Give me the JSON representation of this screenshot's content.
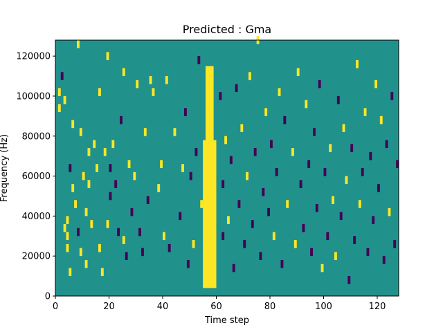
{
  "chart_data": {
    "type": "heatmap",
    "title": "Predicted : Gma",
    "xlabel": "Time step",
    "ylabel": "Frequency (Hz)",
    "xlim": [
      0,
      128
    ],
    "ylim": [
      0,
      128000
    ],
    "x_ticks": [
      0,
      20,
      40,
      60,
      80,
      100,
      120
    ],
    "y_ticks": [
      0,
      20000,
      40000,
      60000,
      80000,
      100000,
      120000
    ],
    "grid": false,
    "legend": "none",
    "colors": {
      "low": "#440154",
      "mid": "#21918c",
      "high": "#fde725"
    },
    "values_description": "Each time step has a column of cells; value 0 = low, 1 = mid (background), 2 = high",
    "background_value": 1,
    "dense_high_columns": [
      {
        "x_start": 55,
        "x_end": 60,
        "y_start": 4000,
        "y_end": 78000
      },
      {
        "x_start": 56,
        "x_end": 59,
        "y_start": 78000,
        "y_end": 115000
      }
    ],
    "cells": [
      [
        1,
        92000,
        2
      ],
      [
        1,
        100000,
        2
      ],
      [
        2,
        108000,
        0
      ],
      [
        3,
        96000,
        2
      ],
      [
        3,
        32000,
        2
      ],
      [
        4,
        28000,
        2
      ],
      [
        4,
        36000,
        2
      ],
      [
        4,
        22000,
        2
      ],
      [
        5,
        62000,
        0
      ],
      [
        5,
        10000,
        2
      ],
      [
        6,
        84000,
        2
      ],
      [
        6,
        52000,
        2
      ],
      [
        7,
        44000,
        2
      ],
      [
        8,
        124000,
        2
      ],
      [
        8,
        30000,
        0
      ],
      [
        9,
        80000,
        2
      ],
      [
        9,
        20000,
        2
      ],
      [
        10,
        58000,
        2
      ],
      [
        11,
        40000,
        2
      ],
      [
        11,
        14000,
        2
      ],
      [
        12,
        70000,
        2
      ],
      [
        12,
        54000,
        2
      ],
      [
        13,
        34000,
        2
      ],
      [
        14,
        74000,
        2
      ],
      [
        15,
        62000,
        2
      ],
      [
        16,
        100000,
        2
      ],
      [
        16,
        22000,
        2
      ],
      [
        17,
        10000,
        2
      ],
      [
        18,
        70000,
        2
      ],
      [
        19,
        118000,
        2
      ],
      [
        19,
        34000,
        2
      ],
      [
        20,
        62000,
        0
      ],
      [
        20,
        48000,
        0
      ],
      [
        21,
        74000,
        2
      ],
      [
        22,
        54000,
        0
      ],
      [
        23,
        30000,
        0
      ],
      [
        24,
        86000,
        0
      ],
      [
        25,
        110000,
        2
      ],
      [
        25,
        26000,
        2
      ],
      [
        26,
        18000,
        0
      ],
      [
        27,
        64000,
        2
      ],
      [
        28,
        40000,
        0
      ],
      [
        29,
        58000,
        2
      ],
      [
        30,
        104000,
        2
      ],
      [
        31,
        30000,
        0
      ],
      [
        32,
        20000,
        0
      ],
      [
        33,
        80000,
        2
      ],
      [
        34,
        46000,
        0
      ],
      [
        35,
        106000,
        2
      ],
      [
        36,
        100000,
        2
      ],
      [
        38,
        52000,
        2
      ],
      [
        39,
        64000,
        2
      ],
      [
        40,
        28000,
        2
      ],
      [
        41,
        106000,
        2
      ],
      [
        42,
        22000,
        0
      ],
      [
        44,
        80000,
        2
      ],
      [
        46,
        38000,
        0
      ],
      [
        47,
        62000,
        2
      ],
      [
        48,
        90000,
        0
      ],
      [
        49,
        14000,
        0
      ],
      [
        50,
        58000,
        0
      ],
      [
        51,
        24000,
        2
      ],
      [
        52,
        70000,
        0
      ],
      [
        53,
        116000,
        0
      ],
      [
        54,
        44000,
        2
      ],
      [
        61,
        98000,
        0
      ],
      [
        62,
        54000,
        0
      ],
      [
        62,
        28000,
        0
      ],
      [
        63,
        76000,
        2
      ],
      [
        64,
        36000,
        2
      ],
      [
        65,
        66000,
        0
      ],
      [
        66,
        12000,
        0
      ],
      [
        67,
        102000,
        0
      ],
      [
        68,
        44000,
        0
      ],
      [
        69,
        82000,
        2
      ],
      [
        70,
        24000,
        0
      ],
      [
        71,
        58000,
        2
      ],
      [
        72,
        108000,
        2
      ],
      [
        73,
        34000,
        0
      ],
      [
        74,
        70000,
        0
      ],
      [
        75,
        126000,
        2
      ],
      [
        76,
        18000,
        0
      ],
      [
        77,
        50000,
        0
      ],
      [
        78,
        90000,
        2
      ],
      [
        79,
        40000,
        0
      ],
      [
        80,
        74000,
        0
      ],
      [
        81,
        28000,
        2
      ],
      [
        82,
        60000,
        0
      ],
      [
        83,
        100000,
        2
      ],
      [
        84,
        14000,
        0
      ],
      [
        85,
        86000,
        0
      ],
      [
        86,
        44000,
        2
      ],
      [
        88,
        70000,
        2
      ],
      [
        89,
        24000,
        2
      ],
      [
        90,
        110000,
        2
      ],
      [
        91,
        54000,
        0
      ],
      [
        92,
        32000,
        0
      ],
      [
        93,
        94000,
        2
      ],
      [
        94,
        64000,
        0
      ],
      [
        95,
        20000,
        0
      ],
      [
        96,
        80000,
        0
      ],
      [
        97,
        42000,
        0
      ],
      [
        98,
        104000,
        0
      ],
      [
        99,
        12000,
        2
      ],
      [
        100,
        60000,
        0
      ],
      [
        101,
        28000,
        0
      ],
      [
        102,
        72000,
        2
      ],
      [
        103,
        46000,
        2
      ],
      [
        104,
        18000,
        2
      ],
      [
        105,
        96000,
        0
      ],
      [
        106,
        38000,
        0
      ],
      [
        107,
        82000,
        2
      ],
      [
        108,
        56000,
        2
      ],
      [
        109,
        6000,
        0
      ],
      [
        110,
        72000,
        0
      ],
      [
        111,
        26000,
        0
      ],
      [
        112,
        114000,
        2
      ],
      [
        113,
        44000,
        2
      ],
      [
        114,
        60000,
        0
      ],
      [
        115,
        90000,
        2
      ],
      [
        116,
        20000,
        0
      ],
      [
        117,
        68000,
        0
      ],
      [
        118,
        36000,
        0
      ],
      [
        119,
        104000,
        2
      ],
      [
        120,
        52000,
        0
      ],
      [
        121,
        86000,
        2
      ],
      [
        122,
        16000,
        0
      ],
      [
        123,
        74000,
        0
      ],
      [
        124,
        40000,
        2
      ],
      [
        125,
        98000,
        0
      ],
      [
        126,
        24000,
        0
      ],
      [
        127,
        64000,
        0
      ]
    ]
  }
}
